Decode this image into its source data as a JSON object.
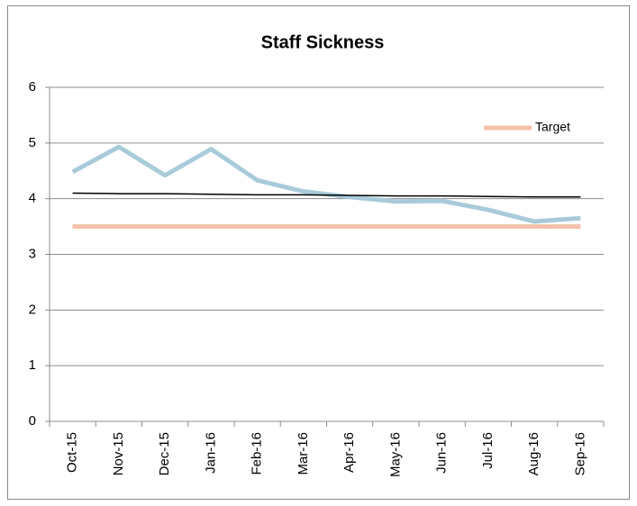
{
  "chart_data": {
    "type": "line",
    "title": "Staff Sickness",
    "categories": [
      "Oct-15",
      "Nov-15",
      "Dec-15",
      "Jan-16",
      "Feb-16",
      "Mar-16",
      "Apr-16",
      "May-16",
      "Jun-16",
      "Jul-16",
      "Aug-16",
      "Sep-16"
    ],
    "series": [
      {
        "color": "#a9cbd9",
        "width": 5,
        "values": [
          4.48,
          4.93,
          4.42,
          4.89,
          4.33,
          4.13,
          4.03,
          3.95,
          3.96,
          3.8,
          3.59,
          3.65
        ]
      },
      {
        "name": "Target",
        "color": "#f4c0a8",
        "width": 5,
        "values": [
          3.5,
          3.5,
          3.5,
          3.5,
          3.5,
          3.5,
          3.5,
          3.5,
          3.5,
          3.5,
          3.5,
          3.5
        ]
      },
      {
        "color": "#000000",
        "width": 1.5,
        "values": [
          4.1,
          4.09,
          4.09,
          4.08,
          4.07,
          4.07,
          4.06,
          4.05,
          4.05,
          4.04,
          4.03,
          4.03
        ]
      }
    ],
    "ylim": [
      0,
      6
    ],
    "yticks": [
      0,
      1,
      2,
      3,
      4,
      5,
      6
    ],
    "grid": true,
    "legend": "upper right"
  }
}
